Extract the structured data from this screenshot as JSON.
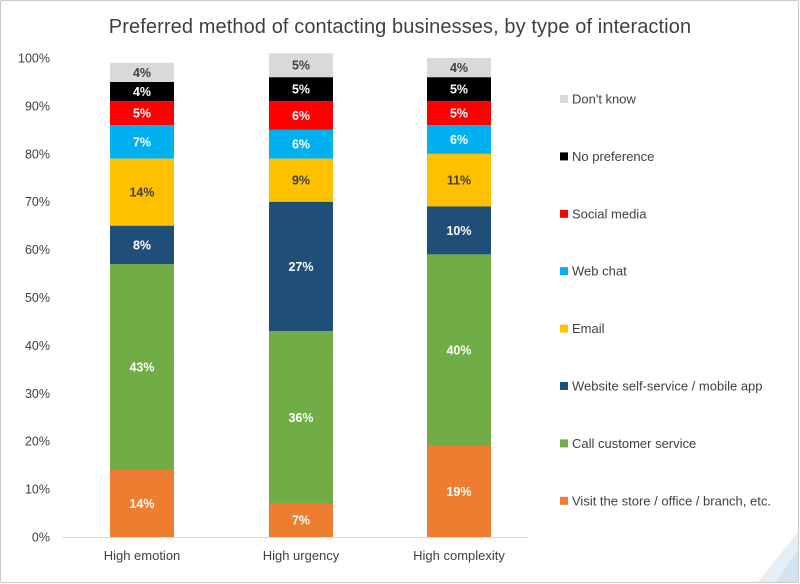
{
  "chart_data": {
    "type": "bar",
    "stacked": true,
    "percent": true,
    "title": "Preferred method of contacting businesses, by type of interaction",
    "xlabel": "",
    "ylabel": "",
    "ylim": [
      0,
      100
    ],
    "y_ticks": [
      "0%",
      "10%",
      "20%",
      "30%",
      "40%",
      "50%",
      "60%",
      "70%",
      "80%",
      "90%",
      "100%"
    ],
    "grid": false,
    "legend_position": "right",
    "categories": [
      "High emotion",
      "High urgency",
      "High complexity"
    ],
    "series": [
      {
        "name": "Visit the store / office / branch, etc.",
        "color": "#ed7d31",
        "label_color": "#ffffff",
        "values": [
          14,
          7,
          19
        ],
        "labels": [
          "14%",
          "7%",
          "19%"
        ]
      },
      {
        "name": "Call customer service",
        "color": "#70ad47",
        "label_color": "#ffffff",
        "values": [
          43,
          36,
          40
        ],
        "labels": [
          "43%",
          "36%",
          "40%"
        ]
      },
      {
        "name": "Website self-service / mobile app",
        "color": "#1f4e79",
        "label_color": "#ffffff",
        "values": [
          8,
          27,
          10
        ],
        "labels": [
          "8%",
          "27%",
          "10%"
        ]
      },
      {
        "name": "Email",
        "color": "#ffc000",
        "label_color": "#404040",
        "values": [
          14,
          9,
          11
        ],
        "labels": [
          "14%",
          "9%",
          "11%"
        ]
      },
      {
        "name": "Web chat",
        "color": "#00b0f0",
        "label_color": "#ffffff",
        "values": [
          7,
          6,
          6
        ],
        "labels": [
          "7%",
          "6%",
          "6%"
        ]
      },
      {
        "name": "Social media",
        "color": "#ff0000",
        "label_color": "#ffffff",
        "values": [
          5,
          6,
          5
        ],
        "labels": [
          "5%",
          "6%",
          "5%"
        ]
      },
      {
        "name": "No preference",
        "color": "#000000",
        "label_color": "#ffffff",
        "values": [
          4,
          5,
          5
        ],
        "labels": [
          "4%",
          "5%",
          "5%"
        ]
      },
      {
        "name": "Don't know",
        "color": "#d9d9d9",
        "label_color": "#404040",
        "values": [
          4,
          5,
          4
        ],
        "labels": [
          "4%",
          "5%",
          "4%"
        ]
      }
    ]
  },
  "colors": {
    "axis": "#d9d9d9",
    "text": "#404040",
    "background": "#ffffff",
    "decoration": "#dcebf5"
  }
}
